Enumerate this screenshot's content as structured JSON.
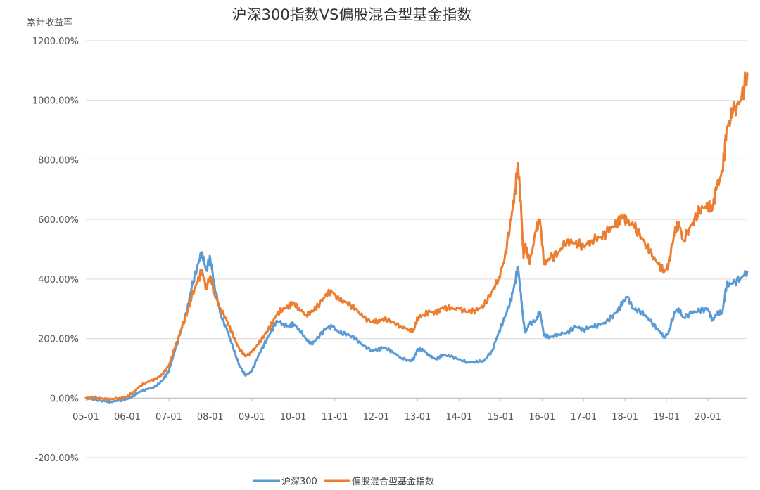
{
  "chart_data": {
    "type": "line",
    "title": "沪深300指数VS偏股混合型基金指数",
    "ylabel": "累计收益率",
    "xlabel": "",
    "ylim": [
      -200,
      1200
    ],
    "y_ticks": [
      -200,
      0,
      200,
      400,
      600,
      800,
      1000,
      1200
    ],
    "y_tick_labels": [
      "-200.00%",
      "0.00%",
      "200.00%",
      "400.00%",
      "600.00%",
      "800.00%",
      "1000.00%",
      "1200.00%"
    ],
    "x_ticks": [
      2005,
      2006,
      2007,
      2008,
      2009,
      2010,
      2011,
      2012,
      2013,
      2014,
      2015,
      2016,
      2017,
      2018,
      2019,
      2020
    ],
    "x_tick_labels": [
      "05-01",
      "06-01",
      "07-01",
      "08-01",
      "09-01",
      "10-01",
      "11-01",
      "12-01",
      "13-01",
      "14-01",
      "15-01",
      "16-01",
      "17-01",
      "18-01",
      "19-01",
      "20-01"
    ],
    "xlim": [
      2005.0,
      2020.95
    ],
    "grid": "horizontal",
    "legend_position": "bottom",
    "series": [
      {
        "name": "沪深300",
        "color": "#5b9bd5",
        "points": [
          [
            2005.0,
            0
          ],
          [
            2005.2,
            -5
          ],
          [
            2005.45,
            -10
          ],
          [
            2005.6,
            -12
          ],
          [
            2005.8,
            -8
          ],
          [
            2006.0,
            -3
          ],
          [
            2006.15,
            8
          ],
          [
            2006.3,
            22
          ],
          [
            2006.5,
            30
          ],
          [
            2006.7,
            40
          ],
          [
            2006.85,
            60
          ],
          [
            2007.0,
            90
          ],
          [
            2007.15,
            160
          ],
          [
            2007.3,
            230
          ],
          [
            2007.45,
            300
          ],
          [
            2007.55,
            370
          ],
          [
            2007.7,
            450
          ],
          [
            2007.8,
            490
          ],
          [
            2007.9,
            430
          ],
          [
            2008.0,
            470
          ],
          [
            2008.1,
            380
          ],
          [
            2008.25,
            280
          ],
          [
            2008.4,
            230
          ],
          [
            2008.55,
            170
          ],
          [
            2008.7,
            110
          ],
          [
            2008.85,
            75
          ],
          [
            2009.0,
            90
          ],
          [
            2009.15,
            140
          ],
          [
            2009.3,
            180
          ],
          [
            2009.45,
            220
          ],
          [
            2009.6,
            260
          ],
          [
            2009.75,
            250
          ],
          [
            2009.9,
            240
          ],
          [
            2010.0,
            250
          ],
          [
            2010.15,
            230
          ],
          [
            2010.3,
            200
          ],
          [
            2010.45,
            180
          ],
          [
            2010.6,
            205
          ],
          [
            2010.8,
            235
          ],
          [
            2010.95,
            240
          ],
          [
            2011.1,
            220
          ],
          [
            2011.3,
            215
          ],
          [
            2011.5,
            200
          ],
          [
            2011.7,
            175
          ],
          [
            2011.9,
            160
          ],
          [
            2012.05,
            165
          ],
          [
            2012.2,
            170
          ],
          [
            2012.4,
            155
          ],
          [
            2012.6,
            135
          ],
          [
            2012.8,
            125
          ],
          [
            2012.9,
            130
          ],
          [
            2013.0,
            165
          ],
          [
            2013.15,
            160
          ],
          [
            2013.3,
            140
          ],
          [
            2013.45,
            130
          ],
          [
            2013.6,
            145
          ],
          [
            2013.8,
            140
          ],
          [
            2014.0,
            130
          ],
          [
            2014.2,
            120
          ],
          [
            2014.4,
            122
          ],
          [
            2014.6,
            125
          ],
          [
            2014.8,
            160
          ],
          [
            2014.95,
            220
          ],
          [
            2015.1,
            270
          ],
          [
            2015.25,
            330
          ],
          [
            2015.35,
            390
          ],
          [
            2015.42,
            440
          ],
          [
            2015.5,
            330
          ],
          [
            2015.55,
            260
          ],
          [
            2015.6,
            220
          ],
          [
            2015.7,
            250
          ],
          [
            2015.85,
            260
          ],
          [
            2015.95,
            290
          ],
          [
            2016.05,
            210
          ],
          [
            2016.2,
            205
          ],
          [
            2016.4,
            215
          ],
          [
            2016.6,
            220
          ],
          [
            2016.8,
            240
          ],
          [
            2017.0,
            230
          ],
          [
            2017.2,
            240
          ],
          [
            2017.4,
            245
          ],
          [
            2017.6,
            260
          ],
          [
            2017.8,
            290
          ],
          [
            2017.95,
            320
          ],
          [
            2018.05,
            340
          ],
          [
            2018.2,
            300
          ],
          [
            2018.4,
            290
          ],
          [
            2018.6,
            260
          ],
          [
            2018.8,
            230
          ],
          [
            2018.95,
            205
          ],
          [
            2019.05,
            220
          ],
          [
            2019.2,
            290
          ],
          [
            2019.3,
            300
          ],
          [
            2019.4,
            270
          ],
          [
            2019.6,
            285
          ],
          [
            2019.8,
            295
          ],
          [
            2020.0,
            300
          ],
          [
            2020.1,
            260
          ],
          [
            2020.2,
            280
          ],
          [
            2020.35,
            290
          ],
          [
            2020.45,
            380
          ],
          [
            2020.6,
            385
          ],
          [
            2020.8,
            405
          ],
          [
            2020.95,
            425
          ]
        ]
      },
      {
        "name": "偏股混合型基金指数",
        "color": "#ed7d31",
        "points": [
          [
            2005.0,
            0
          ],
          [
            2005.2,
            3
          ],
          [
            2005.45,
            -3
          ],
          [
            2005.6,
            -4
          ],
          [
            2005.8,
            0
          ],
          [
            2006.0,
            5
          ],
          [
            2006.15,
            20
          ],
          [
            2006.3,
            40
          ],
          [
            2006.5,
            55
          ],
          [
            2006.7,
            65
          ],
          [
            2006.85,
            80
          ],
          [
            2007.0,
            110
          ],
          [
            2007.15,
            170
          ],
          [
            2007.3,
            230
          ],
          [
            2007.45,
            290
          ],
          [
            2007.55,
            340
          ],
          [
            2007.7,
            395
          ],
          [
            2007.8,
            430
          ],
          [
            2007.9,
            370
          ],
          [
            2008.0,
            410
          ],
          [
            2008.1,
            350
          ],
          [
            2008.25,
            300
          ],
          [
            2008.4,
            260
          ],
          [
            2008.55,
            210
          ],
          [
            2008.7,
            165
          ],
          [
            2008.85,
            140
          ],
          [
            2009.0,
            155
          ],
          [
            2009.15,
            180
          ],
          [
            2009.3,
            210
          ],
          [
            2009.45,
            240
          ],
          [
            2009.6,
            280
          ],
          [
            2009.75,
            300
          ],
          [
            2009.9,
            310
          ],
          [
            2010.0,
            320
          ],
          [
            2010.15,
            300
          ],
          [
            2010.3,
            280
          ],
          [
            2010.45,
            290
          ],
          [
            2010.6,
            310
          ],
          [
            2010.8,
            350
          ],
          [
            2010.95,
            355
          ],
          [
            2011.1,
            330
          ],
          [
            2011.3,
            320
          ],
          [
            2011.5,
            300
          ],
          [
            2011.7,
            270
          ],
          [
            2011.9,
            255
          ],
          [
            2012.05,
            260
          ],
          [
            2012.2,
            265
          ],
          [
            2012.4,
            255
          ],
          [
            2012.6,
            240
          ],
          [
            2012.8,
            230
          ],
          [
            2012.9,
            225
          ],
          [
            2013.0,
            270
          ],
          [
            2013.15,
            280
          ],
          [
            2013.3,
            290
          ],
          [
            2013.45,
            285
          ],
          [
            2013.6,
            305
          ],
          [
            2013.8,
            300
          ],
          [
            2014.0,
            300
          ],
          [
            2014.2,
            290
          ],
          [
            2014.4,
            295
          ],
          [
            2014.6,
            310
          ],
          [
            2014.8,
            360
          ],
          [
            2014.95,
            400
          ],
          [
            2015.1,
            470
          ],
          [
            2015.25,
            600
          ],
          [
            2015.35,
            700
          ],
          [
            2015.42,
            790
          ],
          [
            2015.5,
            620
          ],
          [
            2015.55,
            480
          ],
          [
            2015.6,
            520
          ],
          [
            2015.7,
            450
          ],
          [
            2015.85,
            560
          ],
          [
            2015.95,
            600
          ],
          [
            2016.05,
            450
          ],
          [
            2016.2,
            470
          ],
          [
            2016.4,
            490
          ],
          [
            2016.6,
            530
          ],
          [
            2016.8,
            520
          ],
          [
            2017.0,
            510
          ],
          [
            2017.2,
            530
          ],
          [
            2017.4,
            540
          ],
          [
            2017.6,
            560
          ],
          [
            2017.8,
            590
          ],
          [
            2017.95,
            610
          ],
          [
            2018.05,
            590
          ],
          [
            2018.2,
            580
          ],
          [
            2018.4,
            540
          ],
          [
            2018.6,
            490
          ],
          [
            2018.8,
            450
          ],
          [
            2018.95,
            425
          ],
          [
            2019.05,
            450
          ],
          [
            2019.2,
            560
          ],
          [
            2019.3,
            590
          ],
          [
            2019.4,
            530
          ],
          [
            2019.6,
            580
          ],
          [
            2019.8,
            630
          ],
          [
            2020.0,
            650
          ],
          [
            2020.1,
            630
          ],
          [
            2020.2,
            700
          ],
          [
            2020.35,
            760
          ],
          [
            2020.45,
            900
          ],
          [
            2020.6,
            960
          ],
          [
            2020.8,
            1000
          ],
          [
            2020.95,
            1090
          ]
        ]
      }
    ]
  }
}
